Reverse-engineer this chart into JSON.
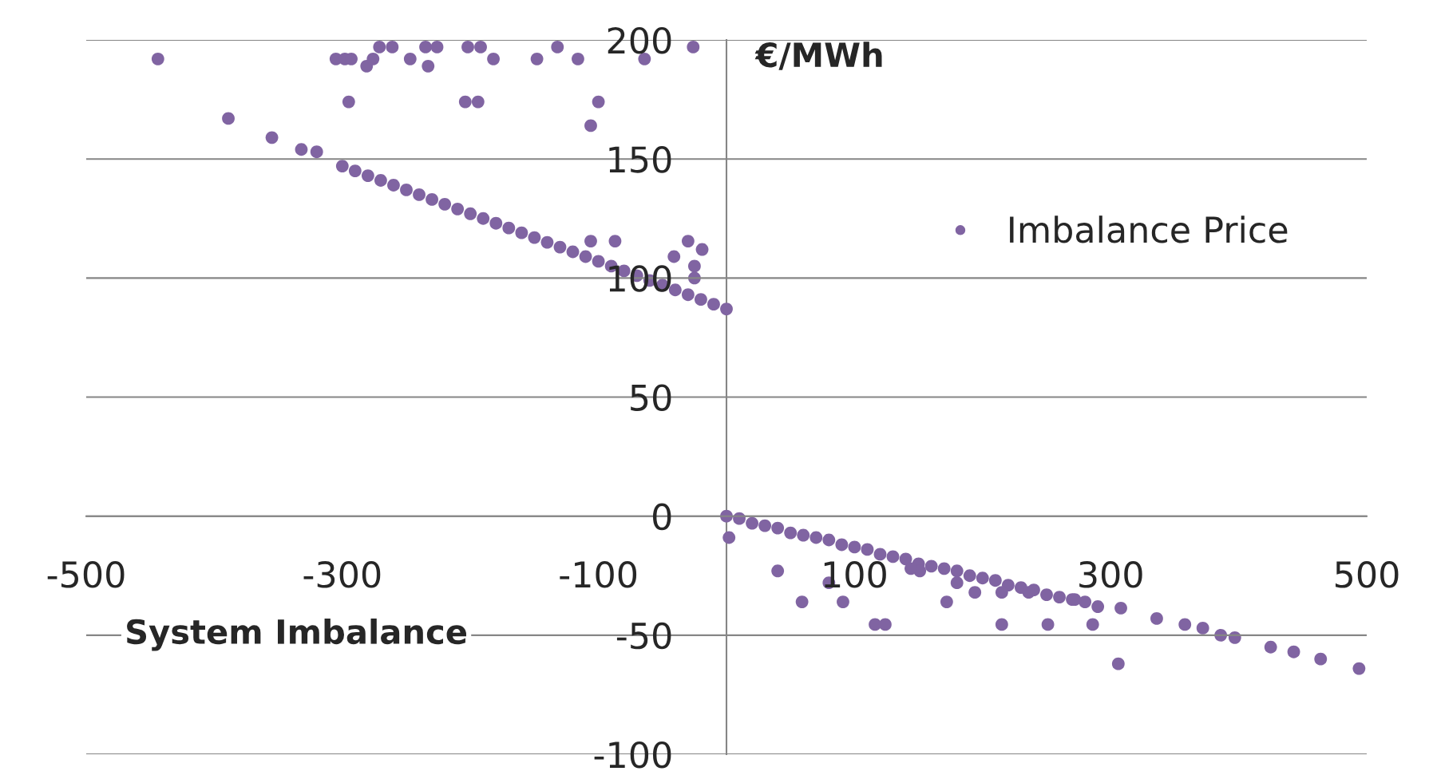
{
  "chart_data": {
    "type": "scatter",
    "xlabel": "System Imbalance",
    "ylabel": "€/MWh",
    "xlim": [
      -500,
      500
    ],
    "ylim": [
      -100,
      200
    ],
    "xticks": [
      -500,
      -300,
      -100,
      100,
      300,
      500
    ],
    "yticks": [
      -100,
      -50,
      0,
      50,
      100,
      150,
      200
    ],
    "grid": "y",
    "legend": "right",
    "marker": "circle",
    "series": [
      {
        "name": "Imbalance Price",
        "color": "#8064a2",
        "x": [
          -444,
          -389,
          -355,
          -332,
          -320,
          -305,
          -298,
          -293,
          -295,
          -281,
          -276,
          -271,
          -261,
          -247,
          -235,
          -226,
          -233,
          -202,
          -192,
          -204,
          -194,
          -182,
          -148,
          -132,
          -116,
          -106,
          -100,
          -64,
          -26,
          -106,
          -87,
          -41,
          -30,
          -19,
          -25,
          -25,
          -300,
          -290,
          -280,
          -270,
          -260,
          -250,
          -240,
          -230,
          -220,
          -210,
          -200,
          -190,
          -180,
          -170,
          -160,
          -150,
          -140,
          -130,
          -120,
          -110,
          -100,
          -90,
          -80,
          -70,
          -60,
          -50,
          -40,
          -30,
          -20,
          -10,
          0,
          0,
          10,
          20,
          30,
          40,
          50,
          60,
          70,
          80,
          90,
          100,
          110,
          120,
          130,
          140,
          150,
          160,
          170,
          180,
          190,
          200,
          210,
          220,
          230,
          240,
          250,
          260,
          270,
          280,
          290,
          308,
          336,
          358,
          372,
          386,
          397,
          2,
          40,
          59,
          80,
          91,
          116,
          124,
          151,
          172,
          215,
          251,
          286,
          306,
          425,
          443,
          464,
          494,
          144,
          180,
          194,
          215,
          236,
          272
        ],
        "values": [
          192,
          167,
          159,
          154,
          153,
          192,
          192,
          192,
          174,
          189,
          192,
          197,
          197,
          192,
          197,
          197,
          189,
          197,
          197,
          174,
          174,
          192,
          192,
          197,
          192,
          164,
          174,
          192,
          197,
          115.5,
          115.5,
          109,
          115.5,
          112,
          105,
          100,
          147,
          145,
          143,
          141,
          139,
          137,
          135,
          133,
          131,
          129,
          127,
          125,
          123,
          121,
          119,
          117,
          115,
          113,
          111,
          109,
          107,
          105,
          103,
          101,
          99,
          97,
          95,
          93,
          91,
          89,
          87,
          0,
          -1,
          -3,
          -4,
          -5,
          -7,
          -8,
          -9,
          -10,
          -12,
          -13,
          -14,
          -16,
          -17,
          -18,
          -20,
          -21,
          -22,
          -23,
          -25,
          -26,
          -27,
          -29,
          -30,
          -31,
          -33,
          -34,
          -35,
          -36,
          -38,
          -38.6,
          -43,
          -45.5,
          -47,
          -50,
          -51,
          -9,
          -23,
          -36,
          -28,
          -36,
          -45.5,
          -45.5,
          -23,
          -36,
          -45.5,
          -45.5,
          -45.5,
          -62,
          -55,
          -57,
          -60,
          -64,
          -22,
          -28,
          -32,
          -32,
          -32,
          -35
        ]
      }
    ]
  }
}
